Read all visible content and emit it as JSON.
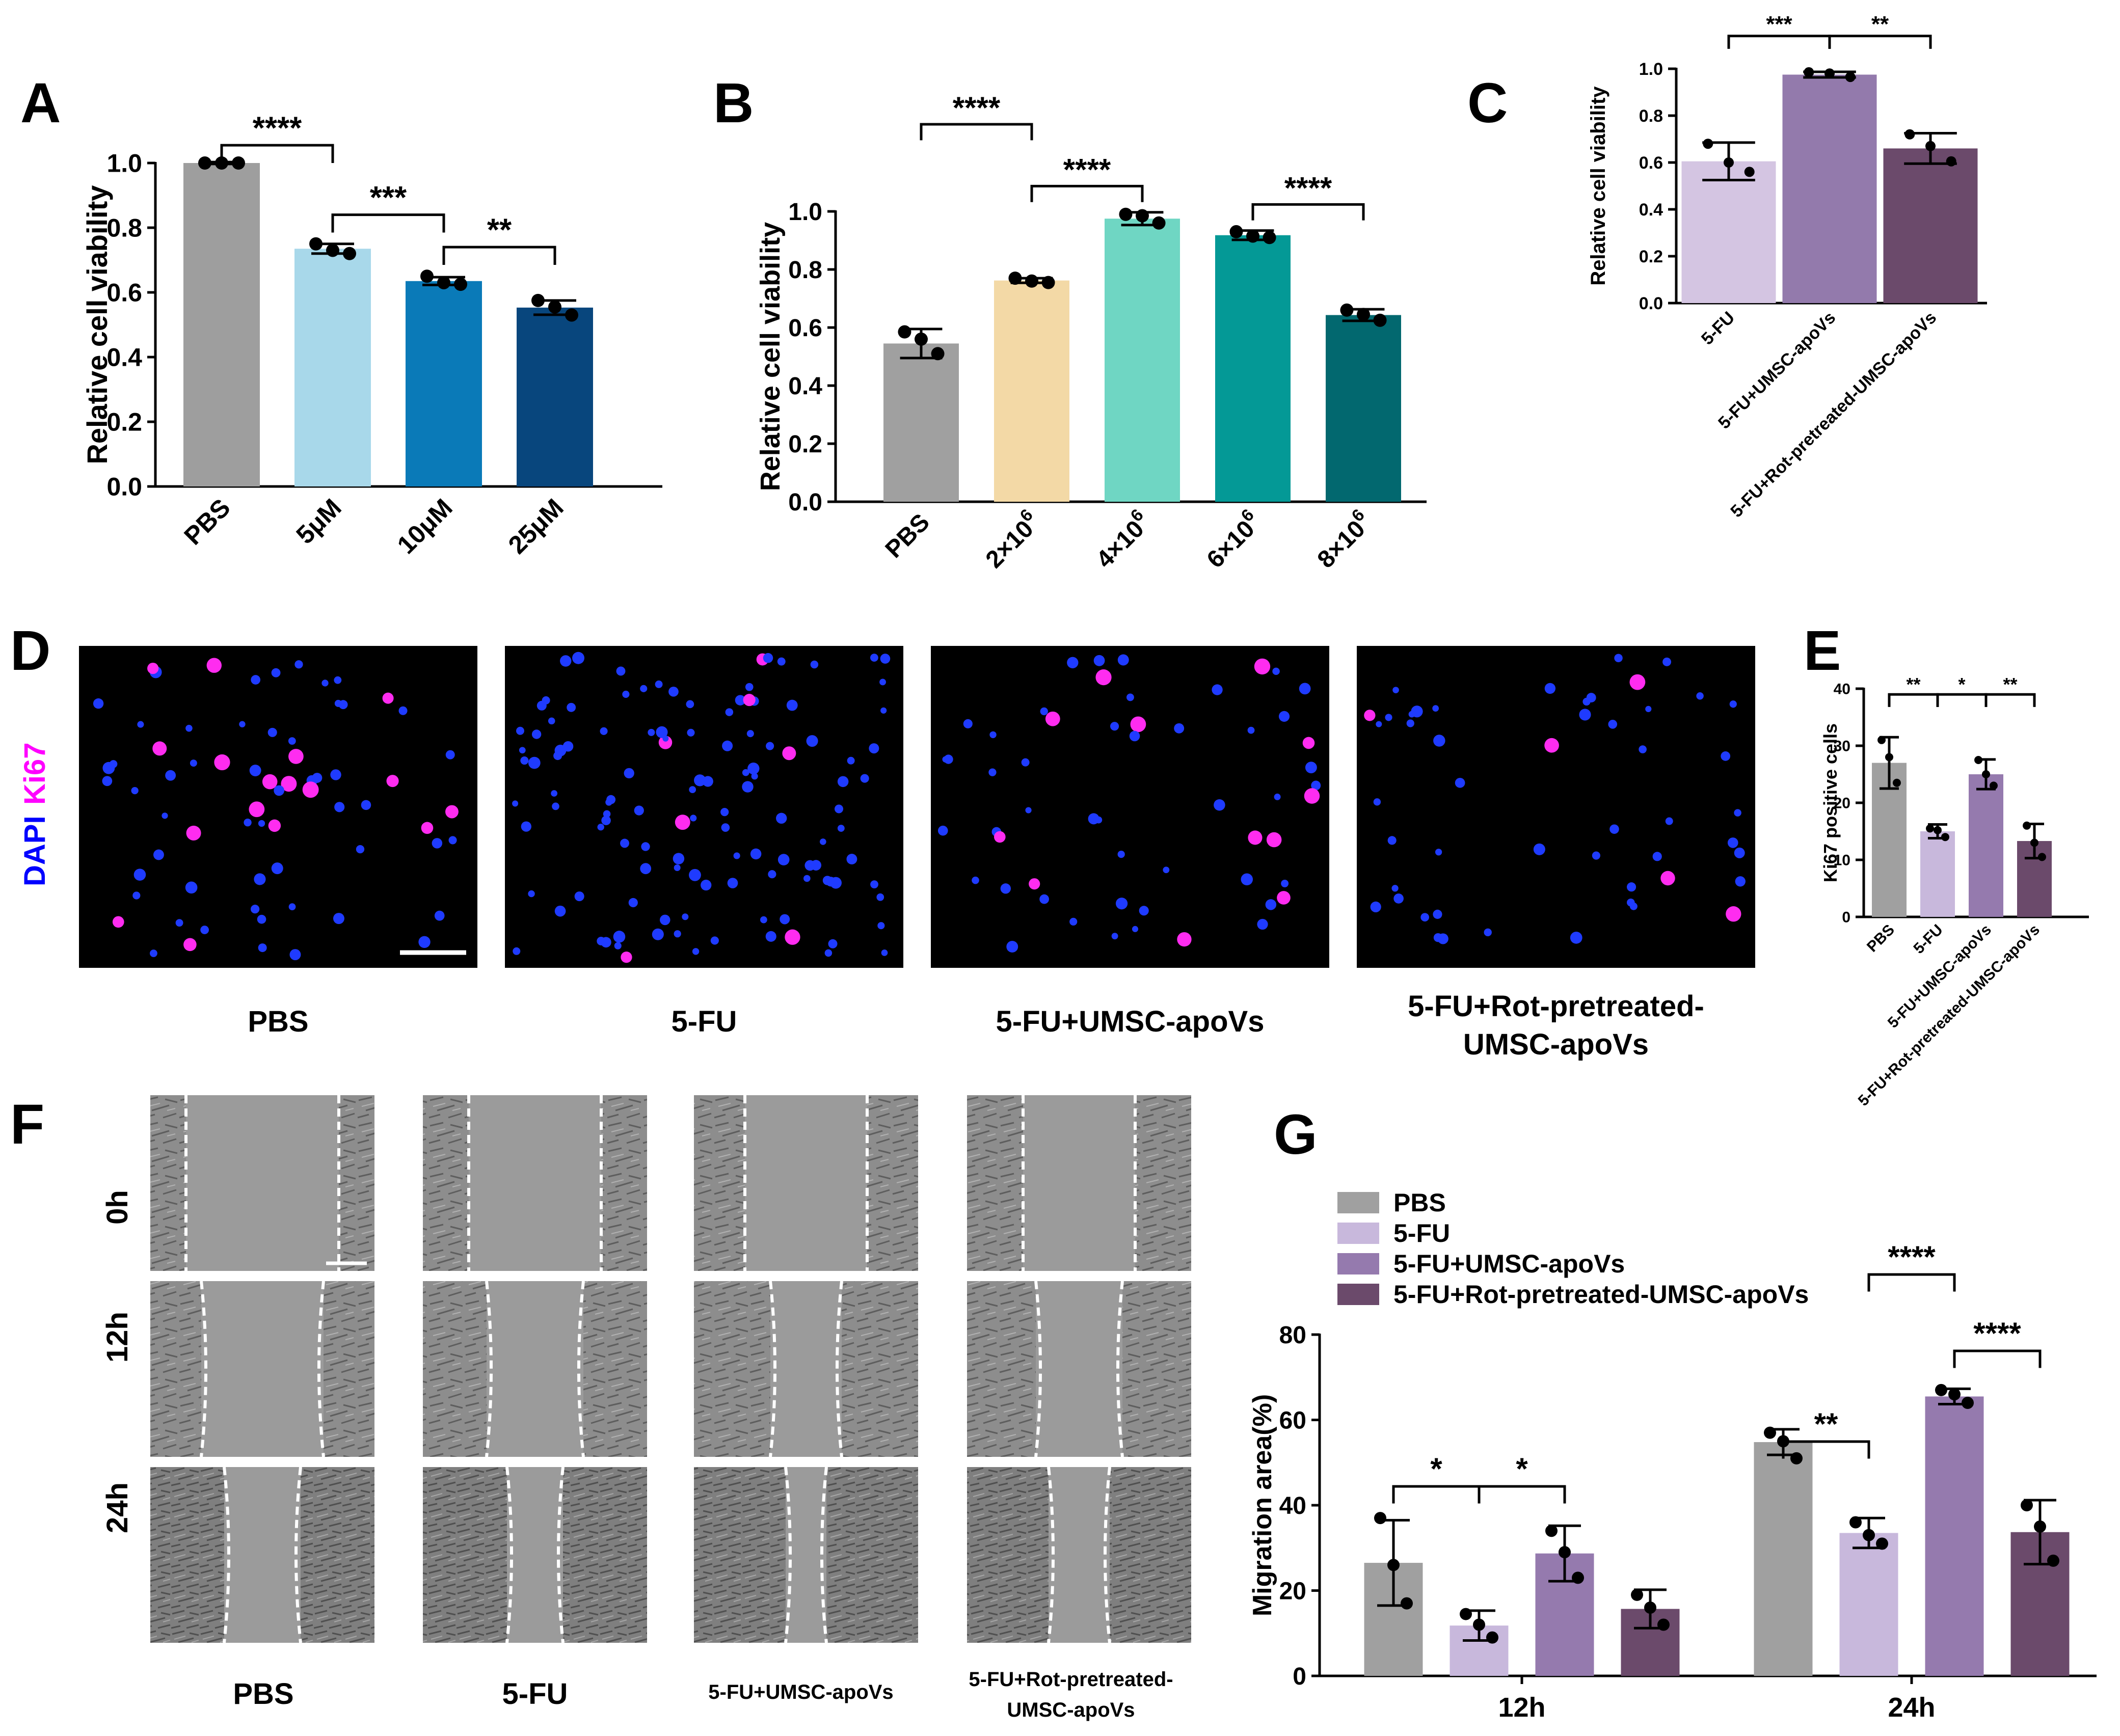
{
  "figure": {
    "panel_letters": [
      "A",
      "B",
      "C",
      "D",
      "E",
      "F",
      "G"
    ]
  },
  "chart_data": [
    {
      "panel": "A",
      "type": "bar",
      "categories": [
        "PBS",
        "5μM",
        "10μM",
        "25μM"
      ],
      "values": [
        1.0,
        0.735,
        0.635,
        0.553
      ],
      "errors": [
        0.003,
        0.015,
        0.012,
        0.022
      ],
      "points": [
        [
          1.0,
          1.0,
          1.0
        ],
        [
          0.75,
          0.73,
          0.72
        ],
        [
          0.65,
          0.63,
          0.625
        ],
        [
          0.575,
          0.555,
          0.53
        ]
      ],
      "colors": [
        "#9e9e9e",
        "#a8d8ea",
        "#0a7ab8",
        "#08467d"
      ],
      "ylabel": "Relative cell viability",
      "ylim": [
        0,
        1.0
      ],
      "yticks": [
        "0.0",
        "0.2",
        "0.4",
        "0.6",
        "0.8",
        "1.0"
      ],
      "yticks_values": [
        0,
        0.2,
        0.4,
        0.6,
        0.8,
        1.0
      ],
      "comparisons": [
        {
          "from": 0,
          "to": 1,
          "label": "****"
        },
        {
          "from": 1,
          "to": 2,
          "label": "***"
        },
        {
          "from": 2,
          "to": 3,
          "label": "**"
        }
      ]
    },
    {
      "panel": "B",
      "type": "bar",
      "categories": [
        "PBS",
        "2×10",
        "4×10",
        "6×10",
        "8×10"
      ],
      "superscripts": [
        "",
        "6",
        "6",
        "6",
        "6"
      ],
      "values": [
        0.545,
        0.762,
        0.975,
        0.918,
        0.643
      ],
      "errors": [
        0.05,
        0.008,
        0.022,
        0.016,
        0.02
      ],
      "points": [
        [
          0.585,
          0.56,
          0.51
        ],
        [
          0.77,
          0.76,
          0.755
        ],
        [
          0.99,
          0.985,
          0.96
        ],
        [
          0.93,
          0.915,
          0.91
        ],
        [
          0.66,
          0.645,
          0.625
        ]
      ],
      "colors": [
        "#a0a0a0",
        "#f3d9a6",
        "#6fd6c3",
        "#049996",
        "#02686f"
      ],
      "ylabel": "Relative cell viability",
      "ylim": [
        0,
        1.0
      ],
      "yticks": [
        "0.0",
        "0.2",
        "0.4",
        "0.6",
        "0.8",
        "1.0"
      ],
      "yticks_values": [
        0,
        0.2,
        0.4,
        0.6,
        0.8,
        1.0
      ],
      "comparisons": [
        {
          "from": 0,
          "to": 1,
          "label": "****"
        },
        {
          "from": 1,
          "to": 2,
          "label": "****"
        },
        {
          "from": 3,
          "to": 4,
          "label": "****"
        }
      ]
    },
    {
      "panel": "C",
      "type": "bar",
      "categories": [
        "5-FU",
        "5-FU+UMSC-apoVs",
        "5-FU+Rot-pretreated-UMSC-apoVs"
      ],
      "values": [
        0.605,
        0.975,
        0.66
      ],
      "errors": [
        0.08,
        0.012,
        0.065
      ],
      "points": [
        [
          0.68,
          0.6,
          0.56
        ],
        [
          0.985,
          0.98,
          0.965
        ],
        [
          0.72,
          0.67,
          0.605
        ]
      ],
      "colors": [
        "#d4c5e2",
        "#937aac",
        "#6b4a6b"
      ],
      "ylabel": "Relative cell viability",
      "ylim": [
        0,
        1.0
      ],
      "yticks": [
        "0.0",
        "0.2",
        "0.4",
        "0.6",
        "0.8",
        "1.0"
      ],
      "yticks_values": [
        0,
        0.2,
        0.4,
        0.6,
        0.8,
        1.0
      ],
      "comparisons": [
        {
          "from": 0,
          "to": 1,
          "label": "***"
        },
        {
          "from": 1,
          "to": 2,
          "label": "**"
        }
      ]
    },
    {
      "panel": "E",
      "type": "bar",
      "categories": [
        "PBS",
        "5-FU",
        "5-FU+UMSC-apoVs",
        "5-FU+Rot-pretreated-UMSC-apoVs"
      ],
      "values": [
        27,
        15,
        25,
        13.3
      ],
      "errors": [
        4.5,
        1.2,
        2.6,
        3.0
      ],
      "points": [
        [
          31,
          28,
          23.5
        ],
        [
          15.5,
          15.2,
          14
        ],
        [
          27.5,
          25,
          23
        ],
        [
          16,
          13,
          10.5
        ]
      ],
      "colors": [
        "#a0a0a0",
        "#c8b8dc",
        "#957aae",
        "#6b4a6b"
      ],
      "ylabel": "Ki67 positive cells",
      "ylim": [
        0,
        40
      ],
      "yticks": [
        "0",
        "10",
        "20",
        "30",
        "40"
      ],
      "yticks_values": [
        0,
        10,
        20,
        30,
        40
      ],
      "comparisons": [
        {
          "from": 0,
          "to": 1,
          "label": "**"
        },
        {
          "from": 1,
          "to": 2,
          "label": "*"
        },
        {
          "from": 2,
          "to": 3,
          "label": "**"
        }
      ]
    },
    {
      "panel": "G",
      "type": "bar",
      "categories": [
        "12h",
        "24h"
      ],
      "series": [
        {
          "name": "PBS",
          "color": "#a0a0a0",
          "values": [
            26.5,
            54.8
          ],
          "errors": [
            10,
            3
          ],
          "points": [
            [
              37,
              26,
              17
            ],
            [
              57,
              55,
              51
            ]
          ]
        },
        {
          "name": "5-FU",
          "color": "#c8b8dc",
          "values": [
            11.8,
            33.5
          ],
          "errors": [
            3.5,
            3.5
          ],
          "points": [
            [
              14.5,
              12,
              9
            ],
            [
              36,
              33,
              31
            ]
          ]
        },
        {
          "name": "5-FU+UMSC-apoVs",
          "color": "#957aae",
          "values": [
            28.7,
            65.5
          ],
          "errors": [
            6.5,
            1.8
          ],
          "points": [
            [
              34,
              29,
              23
            ],
            [
              67,
              66,
              64
            ]
          ]
        },
        {
          "name": "5-FU+Rot-pretreated-UMSC-apoVs",
          "color": "#6b4a6b",
          "values": [
            15.7,
            33.7
          ],
          "errors": [
            4.5,
            7.5
          ],
          "points": [
            [
              19,
              16,
              12
            ],
            [
              40,
              35,
              27
            ]
          ]
        }
      ],
      "ylabel": "Migration area(%)",
      "ylim": [
        0,
        80
      ],
      "yticks": [
        "0",
        "20",
        "40",
        "60",
        "80"
      ],
      "yticks_values": [
        0,
        20,
        40,
        60,
        80
      ],
      "comparisons": [
        {
          "group": 0,
          "from": 0,
          "to": 1,
          "label": "*"
        },
        {
          "group": 0,
          "from": 1,
          "to": 2,
          "label": "*"
        },
        {
          "group": 1,
          "from": 0,
          "to": 1,
          "label": "**"
        },
        {
          "group": 1,
          "from": 1,
          "to": 2,
          "label": "****"
        },
        {
          "group": 1,
          "from": 2,
          "to": 3,
          "label": "****"
        }
      ]
    }
  ],
  "panel_d": {
    "stain_label_1": "DAPI",
    "stain_label_2": "Ki67",
    "stain_color_1": "#0000ff",
    "stain_color_2": "#ff00ff",
    "captions": [
      "PBS",
      "5-FU",
      "5-FU+UMSC-apoVs",
      "5-FU+Rot-pretreated-",
      "UMSC-apoVs"
    ]
  },
  "panel_f": {
    "time_labels": [
      "0h",
      "12h",
      "24h"
    ],
    "captions": [
      "PBS",
      "5-FU",
      "5-FU+UMSC-apoVs",
      "5-FU+Rot-pretreated-",
      "UMSC-apoVs"
    ]
  }
}
